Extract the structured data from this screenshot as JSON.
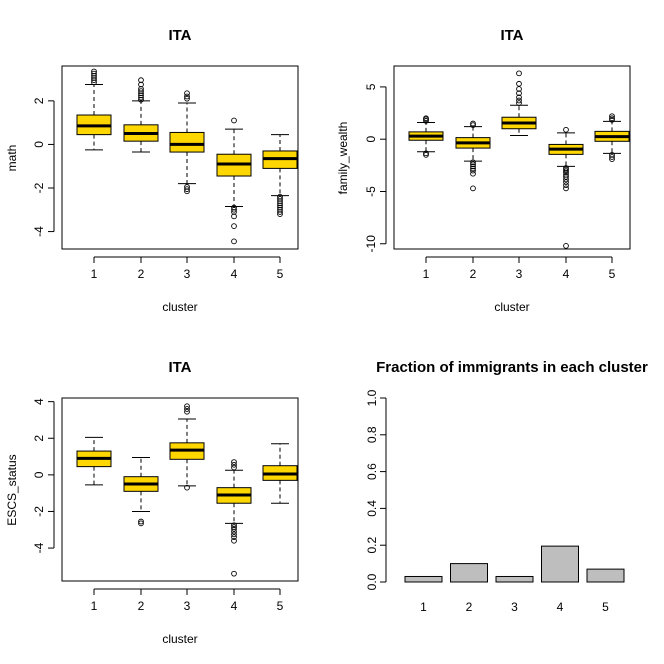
{
  "chart_data": [
    {
      "type": "boxplot",
      "title": "ITA",
      "xlabel": "cluster",
      "ylabel": "math",
      "categories": [
        "1",
        "2",
        "3",
        "4",
        "5"
      ],
      "yticks": [
        -4,
        -2,
        0,
        2
      ],
      "ylim": [
        -4.8,
        3.6
      ],
      "box_color": "#FFD700",
      "boxes": [
        {
          "q1": 0.45,
          "median": 0.85,
          "q3": 1.35,
          "whisker_low": -0.25,
          "whisker_high": 2.75,
          "outliers": [
            2.85,
            2.95,
            3.05,
            3.15,
            3.25,
            3.35
          ]
        },
        {
          "q1": 0.15,
          "median": 0.5,
          "q3": 0.9,
          "whisker_low": -0.35,
          "whisker_high": 2.0,
          "outliers": [
            2.05,
            2.15,
            2.25,
            2.35,
            2.45,
            2.55,
            2.75,
            2.95
          ]
        },
        {
          "q1": -0.35,
          "median": 0.0,
          "q3": 0.55,
          "whisker_low": -1.8,
          "whisker_high": 1.9,
          "outliers": [
            2.1,
            2.2,
            2.35,
            -1.95,
            -2.05,
            -2.15
          ]
        },
        {
          "q1": -1.45,
          "median": -0.9,
          "q3": -0.45,
          "whisker_low": -2.85,
          "whisker_high": 0.7,
          "outliers": [
            1.1,
            -2.9,
            -3.0,
            -3.1,
            -3.3,
            -3.75,
            -4.45
          ]
        },
        {
          "q1": -1.1,
          "median": -0.65,
          "q3": -0.3,
          "whisker_low": -2.35,
          "whisker_high": 0.45,
          "outliers": [
            -2.4,
            -2.5,
            -2.6,
            -2.7,
            -2.8,
            -2.9,
            -3.0,
            -3.1,
            -3.2
          ]
        }
      ]
    },
    {
      "type": "boxplot",
      "title": "ITA",
      "xlabel": "cluster",
      "ylabel": "family_wealth",
      "categories": [
        "1",
        "2",
        "3",
        "4",
        "5"
      ],
      "yticks": [
        -10,
        -5,
        0,
        5
      ],
      "ylim": [
        -10.5,
        7
      ],
      "box_color": "#FFD700",
      "boxes": [
        {
          "q1": -0.1,
          "median": 0.3,
          "q3": 0.7,
          "whisker_low": -1.2,
          "whisker_high": 1.6,
          "outliers": [
            1.75,
            1.9,
            2.0,
            -1.35,
            -1.5
          ]
        },
        {
          "q1": -0.85,
          "median": -0.35,
          "q3": 0.15,
          "whisker_low": -2.1,
          "whisker_high": 1.2,
          "outliers": [
            1.35,
            1.5,
            -2.2,
            -2.4,
            -2.6,
            -2.8,
            -3.0,
            -3.3,
            -4.7
          ]
        },
        {
          "q1": 1.0,
          "median": 1.55,
          "q3": 2.1,
          "whisker_low": 0.35,
          "whisker_high": 3.25,
          "outliers": [
            3.45,
            3.7,
            4.0,
            4.4,
            4.8,
            5.3,
            6.3
          ]
        },
        {
          "q1": -1.45,
          "median": -0.95,
          "q3": -0.5,
          "whisker_low": -2.6,
          "whisker_high": 0.6,
          "outliers": [
            0.9,
            -2.75,
            -2.9,
            -3.05,
            -3.2,
            -3.4,
            -3.6,
            -3.85,
            -4.1,
            -4.4,
            -4.7,
            -10.2
          ]
        },
        {
          "q1": -0.2,
          "median": 0.25,
          "q3": 0.75,
          "whisker_low": -1.35,
          "whisker_high": 1.7,
          "outliers": [
            1.85,
            2.0,
            2.2,
            -1.5,
            -1.7,
            -1.9
          ]
        }
      ]
    },
    {
      "type": "boxplot",
      "title": "ITA",
      "xlabel": "cluster",
      "ylabel": "ESCS_status",
      "categories": [
        "1",
        "2",
        "3",
        "4",
        "5"
      ],
      "yticks": [
        -4,
        -2,
        0,
        2,
        4
      ],
      "ylim": [
        -5.8,
        4.2
      ],
      "box_color": "#FFD700",
      "boxes": [
        {
          "q1": 0.45,
          "median": 0.9,
          "q3": 1.3,
          "whisker_low": -0.55,
          "whisker_high": 2.05,
          "outliers": []
        },
        {
          "q1": -0.9,
          "median": -0.5,
          "q3": -0.1,
          "whisker_low": -2.0,
          "whisker_high": 0.95,
          "outliers": [
            -2.55,
            -2.65
          ]
        },
        {
          "q1": 0.85,
          "median": 1.35,
          "q3": 1.75,
          "whisker_low": -0.6,
          "whisker_high": 3.05,
          "outliers": [
            3.45,
            3.6,
            3.75,
            -0.7
          ]
        },
        {
          "q1": -1.55,
          "median": -1.1,
          "q3": -0.7,
          "whisker_low": -2.65,
          "whisker_high": 0.25,
          "outliers": [
            0.4,
            0.55,
            0.7,
            -2.75,
            -2.85,
            -2.95,
            -3.1,
            -3.25,
            -3.4,
            -3.6,
            -5.4
          ]
        },
        {
          "q1": -0.3,
          "median": 0.05,
          "q3": 0.5,
          "whisker_low": -1.55,
          "whisker_high": 1.7,
          "outliers": []
        }
      ]
    },
    {
      "type": "bar",
      "title": "Fraction of immigrants in each cluster",
      "xlabel": "",
      "ylabel": "",
      "categories": [
        "1",
        "2",
        "3",
        "4",
        "5"
      ],
      "values": [
        0.03,
        0.1,
        0.03,
        0.195,
        0.07
      ],
      "yticks": [
        0.0,
        0.2,
        0.4,
        0.6,
        0.8,
        1.0
      ],
      "ylim": [
        0,
        1.0
      ],
      "bar_color": "#BEBEBE"
    }
  ]
}
